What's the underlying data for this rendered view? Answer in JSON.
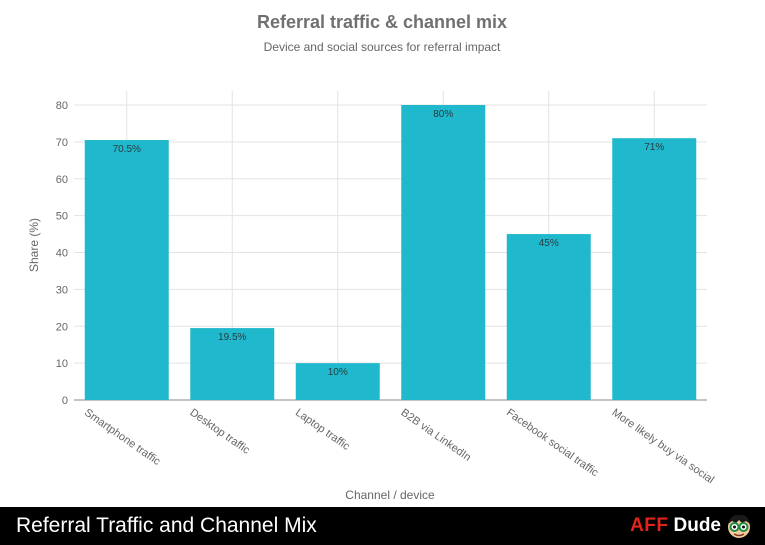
{
  "chart_data": {
    "type": "bar",
    "title": "Referral traffic & channel mix",
    "subtitle": "Device and social sources for referral impact",
    "xlabel": "Channel / device",
    "ylabel": "Share (%)",
    "categories": [
      "Smartphone traffic",
      "Desktop traffic",
      "Laptop traffic",
      "B2B via LinkedIn",
      "Facebook social traffic",
      "More likely buy via social"
    ],
    "values": [
      70.5,
      19.5,
      10,
      80,
      45,
      71
    ],
    "data_labels": [
      "70.5%",
      "19.5%",
      "10%",
      "80%",
      "45%",
      "71%"
    ],
    "ylim": [
      0,
      80
    ],
    "yticks": [
      0,
      10,
      20,
      30,
      40,
      50,
      60,
      70,
      80
    ],
    "grid": true,
    "bar_color": "#20b8cc"
  },
  "footer": {
    "caption": "Referral Traffic and Channel Mix",
    "brand_aff": "AFF",
    "brand_dude": "Dude",
    "brand_color": "#e0231b"
  }
}
